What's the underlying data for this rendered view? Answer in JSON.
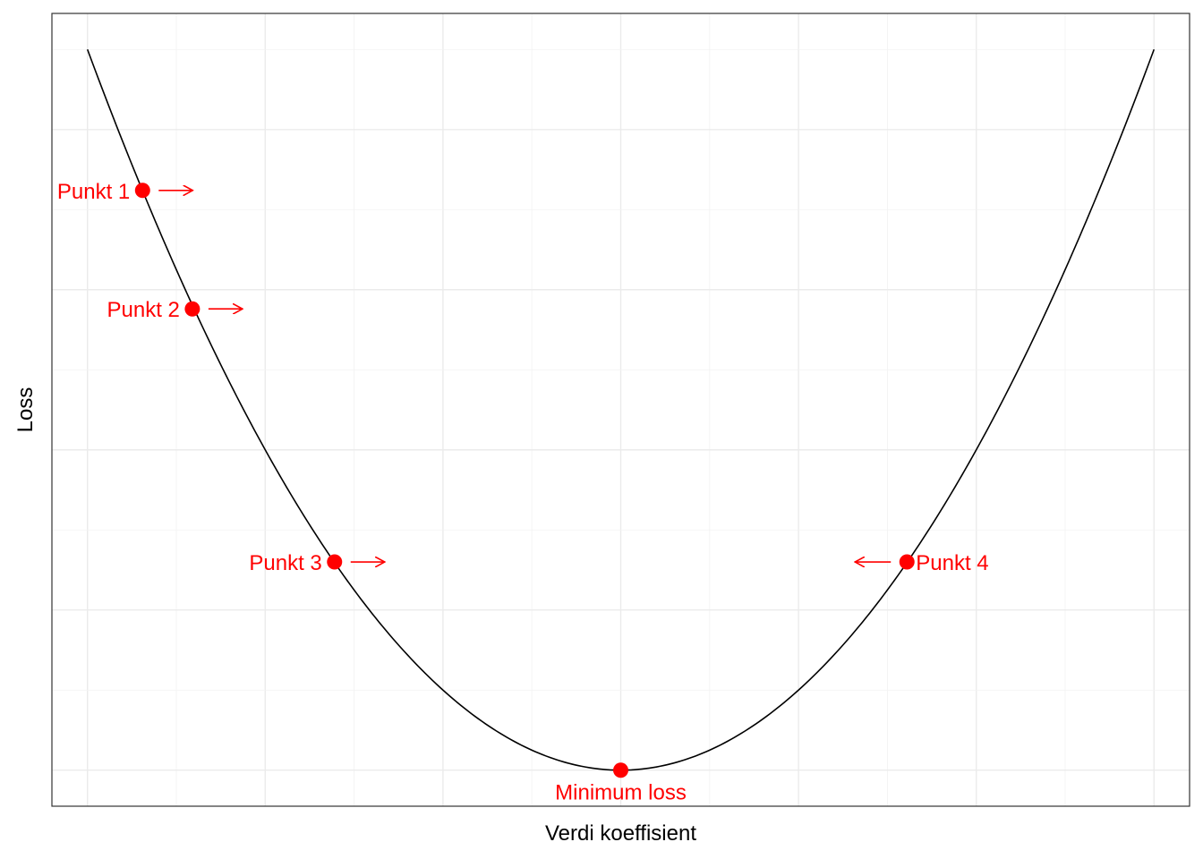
{
  "chart_data": {
    "type": "line",
    "title": "",
    "xlabel": "Verdi koeffisient",
    "ylabel": "Loss",
    "xlim": [
      -3.2,
      3.2
    ],
    "ylim": [
      -0.45,
      9.45
    ],
    "grid": true,
    "curve": {
      "function": "y = x^2",
      "x_range": [
        -3,
        3
      ],
      "color": "#000000"
    },
    "points": [
      {
        "label": "Punkt 1",
        "x": -2.69,
        "y": 7.24,
        "label_side": "left",
        "arrow": "right"
      },
      {
        "label": "Punkt 2",
        "x": -2.41,
        "y": 5.76,
        "label_side": "left",
        "arrow": "right"
      },
      {
        "label": "Punkt 3",
        "x": -1.61,
        "y": 2.6,
        "label_side": "left",
        "arrow": "right"
      },
      {
        "label": "Punkt 4",
        "x": 1.61,
        "y": 2.6,
        "label_side": "right",
        "arrow": "left"
      },
      {
        "label": "Minimum loss",
        "x": 0,
        "y": 0,
        "label_side": "below",
        "arrow": "none"
      }
    ],
    "point_color": "#ff0000"
  }
}
